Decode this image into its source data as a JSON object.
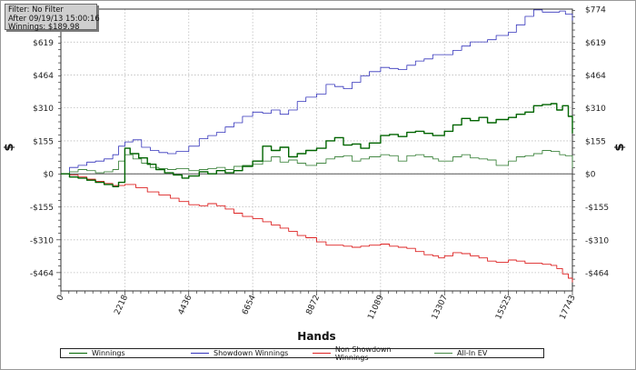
{
  "info_box": {
    "filter": "Filter: No Filter",
    "after": "After 09/19/13 15:00:16",
    "winnings": "Winnings: $189.98"
  },
  "chart_data": {
    "type": "line",
    "xlabel": "Hands",
    "ylabel": "$",
    "xlim": [
      0,
      17743
    ],
    "ylim": [
      -550,
      774
    ],
    "x_ticks": [
      0,
      2218,
      4436,
      6654,
      8872,
      11089,
      13307,
      15525,
      17743
    ],
    "y_ticks": [
      -464,
      -310,
      -155,
      0,
      155,
      310,
      464,
      619,
      774
    ],
    "y_tick_labels": [
      "-$464",
      "-$310",
      "-$155",
      "$0",
      "$155",
      "$310",
      "$464",
      "$619",
      "$774"
    ],
    "grid": true,
    "legend_position": "bottom",
    "series": [
      {
        "name": "Winnings",
        "color": "#006400",
        "x": [
          0,
          300,
          600,
          900,
          1200,
          1500,
          1800,
          2000,
          2218,
          2400,
          2700,
          3000,
          3300,
          3600,
          3900,
          4200,
          4436,
          4800,
          5100,
          5400,
          5700,
          6000,
          6300,
          6654,
          7000,
          7300,
          7600,
          7900,
          8200,
          8500,
          8872,
          9200,
          9500,
          9800,
          10100,
          10400,
          10700,
          11089,
          11400,
          11700,
          12000,
          12300,
          12600,
          12900,
          13307,
          13600,
          13900,
          14200,
          14500,
          14800,
          15100,
          15525,
          15800,
          16100,
          16400,
          16700,
          17000,
          17200,
          17400,
          17600,
          17743
        ],
        "y": [
          0,
          -15,
          -20,
          -30,
          -40,
          -50,
          -60,
          -40,
          120,
          95,
          75,
          45,
          20,
          5,
          -5,
          -20,
          -10,
          10,
          0,
          15,
          5,
          15,
          35,
          60,
          130,
          110,
          125,
          80,
          95,
          110,
          120,
          155,
          170,
          135,
          140,
          120,
          145,
          180,
          185,
          175,
          195,
          200,
          190,
          180,
          200,
          230,
          260,
          250,
          265,
          240,
          255,
          265,
          280,
          290,
          320,
          325,
          330,
          300,
          320,
          270,
          190
        ]
      },
      {
        "name": "Showdown Winnings",
        "color": "#3333bb",
        "x": [
          0,
          300,
          600,
          900,
          1200,
          1500,
          1800,
          2000,
          2218,
          2500,
          2800,
          3100,
          3400,
          3700,
          4000,
          4436,
          4800,
          5100,
          5400,
          5700,
          6000,
          6300,
          6654,
          7000,
          7300,
          7600,
          7900,
          8200,
          8500,
          8872,
          9200,
          9500,
          9800,
          10100,
          10400,
          10700,
          11089,
          11400,
          11700,
          12000,
          12300,
          12600,
          12900,
          13307,
          13600,
          13900,
          14200,
          14500,
          14800,
          15100,
          15525,
          15800,
          16100,
          16400,
          16700,
          17000,
          17300,
          17500,
          17743
        ],
        "y": [
          0,
          30,
          40,
          55,
          60,
          70,
          90,
          130,
          150,
          160,
          125,
          110,
          100,
          95,
          105,
          130,
          165,
          180,
          195,
          220,
          240,
          270,
          290,
          285,
          300,
          280,
          300,
          340,
          360,
          375,
          420,
          410,
          400,
          430,
          460,
          480,
          500,
          495,
          490,
          510,
          530,
          540,
          560,
          560,
          580,
          600,
          620,
          620,
          630,
          650,
          665,
          700,
          740,
          770,
          760,
          760,
          765,
          750,
          720
        ]
      },
      {
        "name": "Non Showdown Winnings",
        "color": "#dd2222",
        "x": [
          0,
          300,
          600,
          900,
          1200,
          1500,
          1800,
          2218,
          2600,
          3000,
          3400,
          3800,
          4100,
          4436,
          4800,
          5100,
          5400,
          5700,
          6000,
          6300,
          6654,
          7000,
          7300,
          7600,
          7900,
          8200,
          8500,
          8872,
          9200,
          9500,
          9800,
          10100,
          10400,
          10700,
          11089,
          11400,
          11700,
          12000,
          12300,
          12600,
          12900,
          13100,
          13307,
          13600,
          13900,
          14200,
          14500,
          14800,
          15100,
          15525,
          15800,
          16100,
          16400,
          16700,
          17000,
          17200,
          17400,
          17600,
          17743
        ],
        "y": [
          0,
          -5,
          -15,
          -25,
          -35,
          -45,
          -55,
          -50,
          -65,
          -85,
          -100,
          -115,
          -130,
          -145,
          -150,
          -140,
          -150,
          -165,
          -185,
          -200,
          -210,
          -225,
          -240,
          -255,
          -270,
          -290,
          -300,
          -320,
          -335,
          -335,
          -340,
          -345,
          -340,
          -335,
          -330,
          -340,
          -345,
          -350,
          -365,
          -380,
          -385,
          -395,
          -385,
          -370,
          -375,
          -385,
          -395,
          -410,
          -415,
          -405,
          -410,
          -420,
          -420,
          -425,
          -430,
          -445,
          -470,
          -490,
          -510
        ]
      },
      {
        "name": "All-In EV",
        "color": "#448844",
        "x": [
          0,
          300,
          600,
          900,
          1200,
          1500,
          1800,
          2000,
          2218,
          2500,
          2800,
          3100,
          3400,
          3700,
          4000,
          4436,
          4800,
          5100,
          5400,
          5700,
          6000,
          6300,
          6654,
          7000,
          7300,
          7600,
          7900,
          8200,
          8500,
          8872,
          9200,
          9500,
          9800,
          10100,
          10400,
          10700,
          11089,
          11400,
          11700,
          12000,
          12300,
          12600,
          12900,
          13100,
          13307,
          13600,
          13900,
          14200,
          14500,
          14800,
          15100,
          15525,
          15800,
          16100,
          16400,
          16700,
          17000,
          17300,
          17500,
          17743
        ],
        "y": [
          0,
          10,
          20,
          15,
          5,
          10,
          20,
          60,
          90,
          70,
          50,
          30,
          25,
          20,
          25,
          15,
          20,
          25,
          30,
          20,
          35,
          40,
          45,
          60,
          80,
          55,
          65,
          50,
          40,
          50,
          70,
          80,
          85,
          60,
          70,
          80,
          90,
          85,
          60,
          85,
          90,
          80,
          70,
          60,
          60,
          80,
          90,
          75,
          70,
          65,
          40,
          60,
          80,
          85,
          95,
          110,
          105,
          90,
          85,
          25
        ]
      }
    ]
  }
}
